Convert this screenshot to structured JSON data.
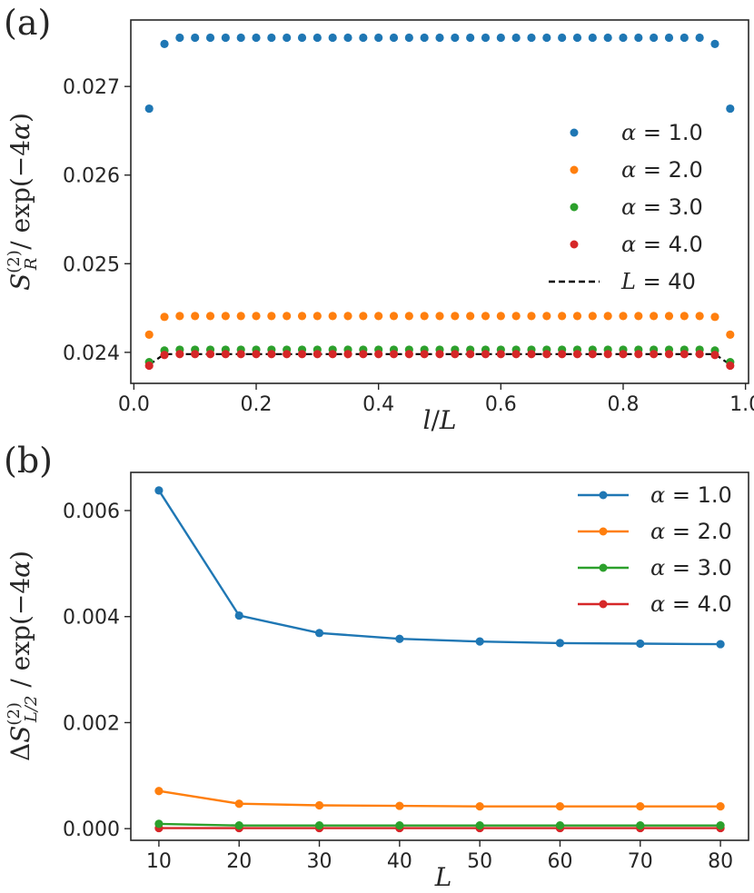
{
  "chart_data": [
    {
      "panel_label": "(a)",
      "type": "scatter",
      "xlabel": "l/L",
      "ylabel": "S_R^(2) / exp(−4α)",
      "xlim": [
        -0.005,
        1.005
      ],
      "ylim": [
        0.02365,
        0.02775
      ],
      "xticks": [
        0.0,
        0.2,
        0.4,
        0.6,
        0.8,
        1.0
      ],
      "xtick_labels": [
        "0.0",
        "0.2",
        "0.4",
        "0.6",
        "0.8",
        "1.0"
      ],
      "yticks": [
        0.024,
        0.025,
        0.026,
        0.027
      ],
      "ytick_labels": [
        "0.024",
        "0.025",
        "0.026",
        "0.027"
      ],
      "legend_position": "right",
      "series": [
        {
          "name": "α = 1.0",
          "label_sym": "α",
          "label_val": "= 1.0",
          "color": "#1f77b4",
          "edge": 0.02675,
          "second": 0.02748,
          "plateau": 0.02755
        },
        {
          "name": "α = 2.0",
          "label_sym": "α",
          "label_val": "= 2.0",
          "color": "#ff7f0e",
          "edge": 0.0242,
          "second": 0.0244,
          "plateau": 0.02441
        },
        {
          "name": "α = 3.0",
          "label_sym": "α",
          "label_val": "= 3.0",
          "color": "#2ca02c",
          "edge": 0.02389,
          "second": 0.02402,
          "plateau": 0.02403
        },
        {
          "name": "α = 4.0",
          "label_sym": "α",
          "label_val": "= 4.0",
          "color": "#d62728",
          "edge": 0.02385,
          "second": 0.02397,
          "plateau": 0.02398
        }
      ],
      "reference_line": {
        "name": "L = 40",
        "label_sym": "L",
        "label_val": "= 40",
        "color": "#000000",
        "style": "dashed",
        "edge": 0.02386,
        "plateau": 0.02398
      },
      "x_points": [
        0.025,
        0.05,
        0.075,
        0.1,
        0.125,
        0.15,
        0.175,
        0.2,
        0.225,
        0.25,
        0.275,
        0.3,
        0.325,
        0.35,
        0.375,
        0.4,
        0.425,
        0.45,
        0.475,
        0.5,
        0.525,
        0.55,
        0.575,
        0.6,
        0.625,
        0.65,
        0.675,
        0.7,
        0.725,
        0.75,
        0.775,
        0.8,
        0.825,
        0.85,
        0.875,
        0.9,
        0.925,
        0.95,
        0.975
      ]
    },
    {
      "panel_label": "(b)",
      "type": "line",
      "xlabel": "L",
      "ylabel": "ΔS_{L/2}^(2) / exp(−4α)",
      "xlim": [
        6.5,
        83.5
      ],
      "ylim": [
        -0.00022,
        0.00672
      ],
      "xticks": [
        10,
        20,
        30,
        40,
        50,
        60,
        70,
        80
      ],
      "xtick_labels": [
        "10",
        "20",
        "30",
        "40",
        "50",
        "60",
        "70",
        "80"
      ],
      "yticks": [
        0.0,
        0.002,
        0.004,
        0.006
      ],
      "ytick_labels": [
        "0.000",
        "0.002",
        "0.004",
        "0.006"
      ],
      "legend_position": "top-right",
      "x": [
        10,
        20,
        30,
        40,
        50,
        60,
        70,
        80
      ],
      "series": [
        {
          "name": "α = 1.0",
          "label_sym": "α",
          "label_val": "= 1.0",
          "color": "#1f77b4",
          "values": [
            0.00638,
            0.00402,
            0.00369,
            0.00358,
            0.00353,
            0.0035,
            0.00349,
            0.00348
          ]
        },
        {
          "name": "α = 2.0",
          "label_sym": "α",
          "label_val": "= 2.0",
          "color": "#ff7f0e",
          "values": [
            0.00071,
            0.00047,
            0.00044,
            0.00043,
            0.00042,
            0.00042,
            0.00042,
            0.00042
          ]
        },
        {
          "name": "α = 3.0",
          "label_sym": "α",
          "label_val": "= 3.0",
          "color": "#2ca02c",
          "values": [
            9e-05,
            6e-05,
            6e-05,
            6e-05,
            6e-05,
            6e-05,
            6e-05,
            6e-05
          ]
        },
        {
          "name": "α = 4.0",
          "label_sym": "α",
          "label_val": "= 4.0",
          "color": "#d62728",
          "values": [
            1e-05,
            1e-05,
            1e-05,
            1e-05,
            1e-05,
            1e-05,
            1e-05,
            1e-05
          ]
        }
      ]
    }
  ]
}
